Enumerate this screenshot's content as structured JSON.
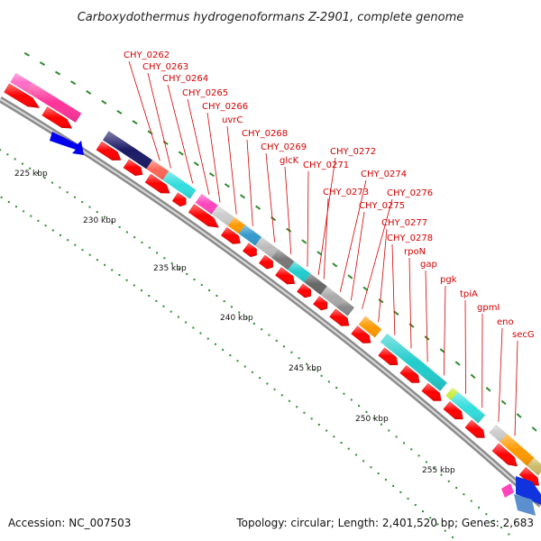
{
  "title": "Carboxydothermus hydrogenoformans Z-2901, complete genome",
  "footer": {
    "accession": "Accession: NC_007503",
    "summary": "Topology: circular; Length: 2,401,520 bp; Genes: 2,683"
  },
  "colors": {
    "gene_arrow": "#ff0000",
    "label": "#d40000",
    "backbone": "#9a9a9a",
    "tick": "#2e8b2e"
  },
  "scale_labels": [
    "225 kbp",
    "230 kbp",
    "235 kbp",
    "240 kbp",
    "245 kbp",
    "250 kbp",
    "255 kbp"
  ],
  "gene_labels": [
    "CHY_0262",
    "CHY_0263",
    "CHY_0264",
    "CHY_0265",
    "CHY_0266",
    "uvrC",
    "CHY_0268",
    "CHY_0269",
    "glcK",
    "CHY_0271",
    "CHY_0272",
    "CHY_0273",
    "CHY_0274",
    "CHY_0275",
    "CHY_0276",
    "CHY_0277",
    "CHY_0278",
    "rpoN",
    "gap",
    "pgk",
    "tpiA",
    "gpmI",
    "eno",
    "secG"
  ]
}
